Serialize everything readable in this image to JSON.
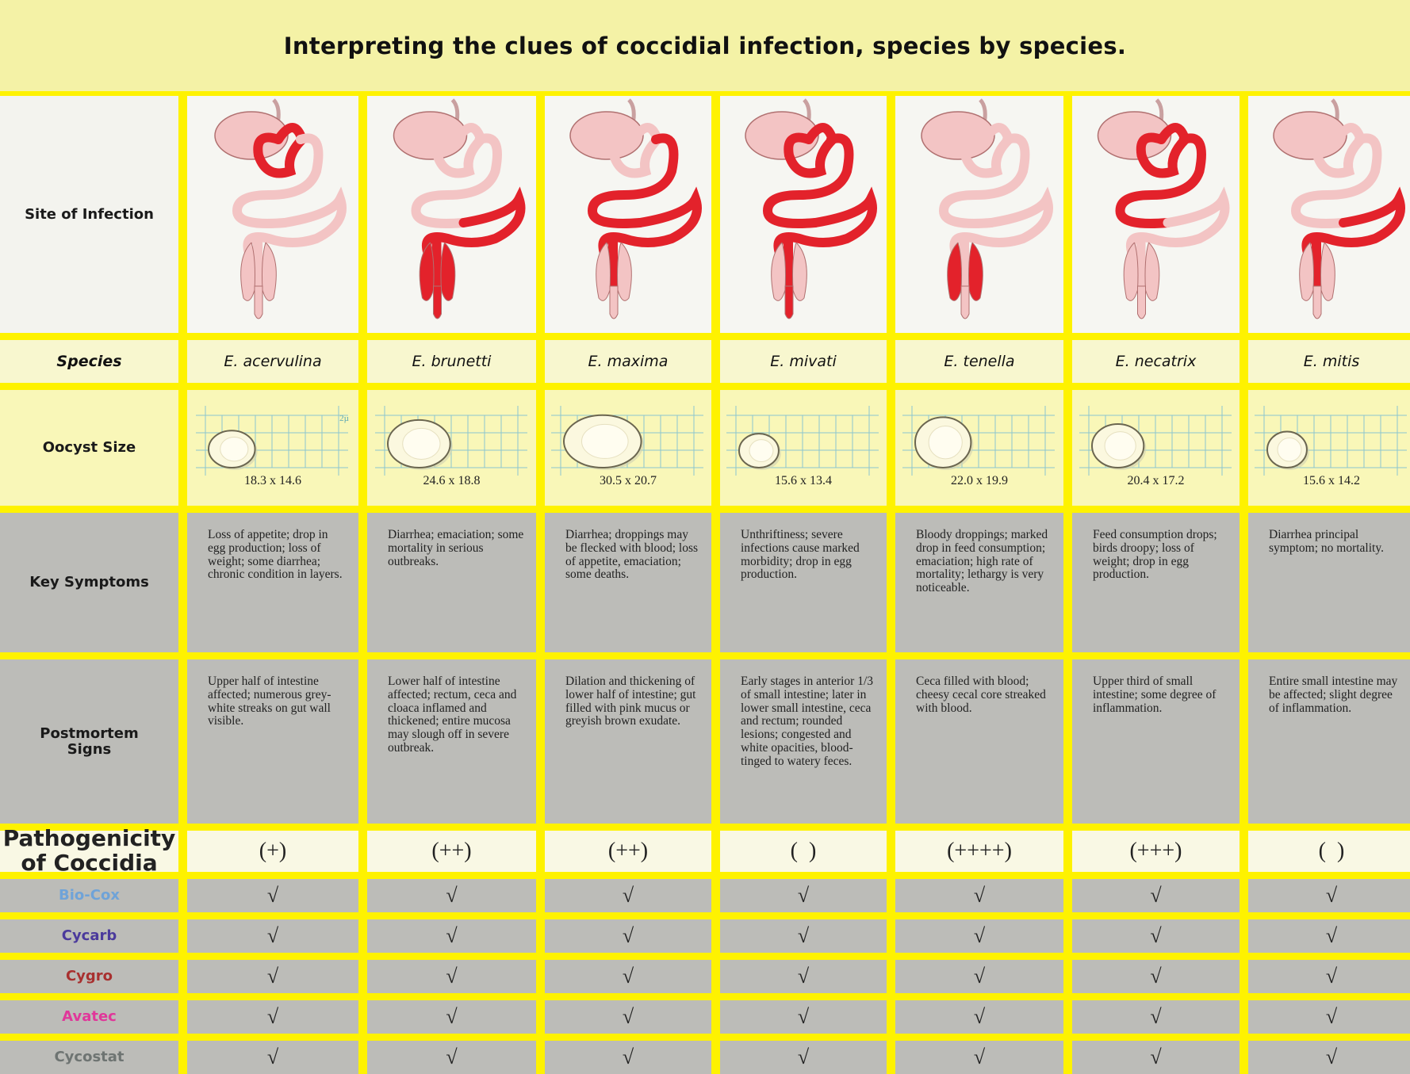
{
  "title": "Interpreting the clues of coccidial infection, species by species.",
  "row_labels": {
    "site": "Site of Infection",
    "species": "Species",
    "oocyst": "Oocyst Size",
    "symptoms": "Key Symptoms",
    "postmortem": "Postmortem Signs",
    "pathogenicity": "Pathogenicity of Coccidia"
  },
  "oocyst_scale_label": "2µ",
  "colors": {
    "affected": "#e3222b",
    "unaffected": "#f3c4c4",
    "grid_yellow": "#fef200",
    "grey_cell": "#bcbcb8"
  },
  "species": [
    {
      "name": "E. acervulina",
      "affected_regions": [
        "duodenum"
      ],
      "oocyst": {
        "length": 18.3,
        "width": 14.6,
        "label": "18.3 x 14.6"
      },
      "symptoms": "Loss of appetite; drop in egg production; loss of weight; some diarrhea; chronic condition in layers.",
      "postmortem": "Upper half of intestine affected; numerous grey-white streaks on gut wall visible.",
      "pathogenicity": "(+)"
    },
    {
      "name": "E. brunetti",
      "affected_regions": [
        "ileum",
        "ceca",
        "rectum"
      ],
      "oocyst": {
        "length": 24.6,
        "width": 18.8,
        "label": "24.6 x 18.8"
      },
      "symptoms": "Diarrhea; emaciation; some mortality in serious outbreaks.",
      "postmortem": "Lower half of intestine affected; rectum, ceca and cloaca inflamed and thickened; entire mucosa may slough off in severe outbreak.",
      "pathogenicity": "(++)"
    },
    {
      "name": "E. maxima",
      "affected_regions": [
        "jejunum",
        "ileum"
      ],
      "oocyst": {
        "length": 30.5,
        "width": 20.7,
        "label": "30.5 x 20.7"
      },
      "symptoms": "Diarrhea; droppings may be flecked with blood; loss of appetite, emaciation; some deaths.",
      "postmortem": "Dilation and thickening of lower half of intestine; gut filled with pink mucus or greyish brown exudate.",
      "pathogenicity": "(++)"
    },
    {
      "name": "E. mivati",
      "affected_regions": [
        "duodenum",
        "jejunum",
        "ileum",
        "rectum"
      ],
      "oocyst": {
        "length": 15.6,
        "width": 13.4,
        "label": "15.6 x 13.4"
      },
      "symptoms": "Unthriftiness; severe infections cause marked morbidity; drop in egg production.",
      "postmortem": "Early stages in anterior 1/3 of small intestine; later in lower small intestine, ceca and rectum; rounded lesions; congested and white opacities, blood-tinged to watery feces.",
      "pathogenicity": "(  )"
    },
    {
      "name": "E. tenella",
      "affected_regions": [
        "ceca"
      ],
      "oocyst": {
        "length": 22.0,
        "width": 19.9,
        "label": "22.0 x 19.9"
      },
      "symptoms": "Bloody droppings; marked drop in feed consumption; emaciation; high rate of mortality; lethargy is very noticeable.",
      "postmortem": "Ceca filled with blood; cheesy cecal core streaked with blood.",
      "pathogenicity": "(++++)"
    },
    {
      "name": "E. necatrix",
      "affected_regions": [
        "duodenum",
        "jejunum"
      ],
      "oocyst": {
        "length": 20.4,
        "width": 17.2,
        "label": "20.4 x 17.2"
      },
      "symptoms": "Feed consumption drops; birds droopy; loss of weight; drop in egg production.",
      "postmortem": "Upper third of small intestine; some degree of inflammation.",
      "pathogenicity": "(+++)"
    },
    {
      "name": "E. mitis",
      "affected_regions": [
        "ileum"
      ],
      "oocyst": {
        "length": 15.6,
        "width": 14.2,
        "label": "15.6 x 14.2"
      },
      "symptoms": "Diarrhea principal symptom; no mortality.",
      "postmortem": "Entire small intestine may be affected; slight degree of inflammation.",
      "pathogenicity": "(  )"
    }
  ],
  "products": [
    {
      "name": "Bio-Cox",
      "color": "#6fa3d8",
      "checks": [
        "√",
        "√",
        "√",
        "√",
        "√",
        "√",
        "√"
      ]
    },
    {
      "name": "Cycarb",
      "color": "#4b3a9c",
      "checks": [
        "√",
        "√",
        "√",
        "√",
        "√",
        "√",
        "√"
      ]
    },
    {
      "name": "Cygro",
      "color": "#a8302f",
      "checks": [
        "√",
        "√",
        "√",
        "√",
        "√",
        "√",
        "√"
      ]
    },
    {
      "name": "Avatec",
      "color": "#e0379a",
      "checks": [
        "√",
        "√",
        "√",
        "√",
        "√",
        "√",
        "√"
      ]
    },
    {
      "name": "Cycostat",
      "color": "#6e7472",
      "checks": [
        "√",
        "√",
        "√",
        "√",
        "√",
        "√",
        "√"
      ]
    }
  ]
}
